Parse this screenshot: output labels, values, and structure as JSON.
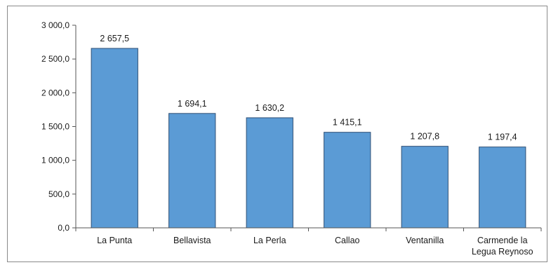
{
  "chart_data": {
    "type": "bar",
    "categories": [
      "La Punta",
      "Bellavista",
      "La Perla",
      "Callao",
      "Ventanilla",
      "Carmende la Legua Reynoso"
    ],
    "category_lines": [
      [
        "La Punta"
      ],
      [
        "Bellavista"
      ],
      [
        "La Perla"
      ],
      [
        "Callao"
      ],
      [
        "Ventanilla"
      ],
      [
        "Carmende la",
        "Legua Reynoso"
      ]
    ],
    "values": [
      2657.5,
      1694.1,
      1630.2,
      1415.1,
      1207.8,
      1197.4
    ],
    "data_labels": [
      "2 657,5",
      "1 694,1",
      "1 630,2",
      "1 415,1",
      "1 207,8",
      "1 197,4"
    ],
    "yticks": [
      0,
      500,
      1000,
      1500,
      2000,
      2500,
      3000
    ],
    "ytick_labels": [
      "0,0",
      "500,0",
      "1 000,0",
      "1 500,0",
      "2 000,0",
      "2 500,0",
      "3 000,0"
    ],
    "ylim": [
      0,
      3000
    ],
    "title": "",
    "xlabel": "",
    "ylabel": "",
    "grid": false,
    "legend": "none",
    "bar_color": "#5b9bd5",
    "bar_edge_color": "#2f4f75"
  }
}
